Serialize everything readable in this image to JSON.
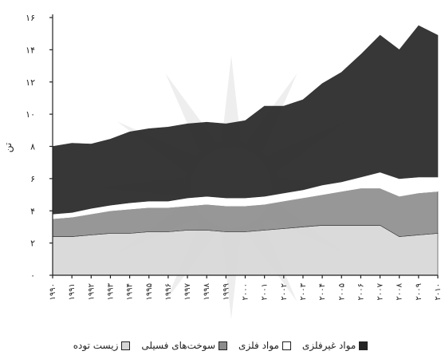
{
  "chart_data": {
    "type": "area",
    "stacked": true,
    "ylabel": "تن",
    "ylim": [
      0,
      16
    ],
    "y_ticks": [
      0,
      2,
      4,
      6,
      8,
      10,
      12,
      14,
      16
    ],
    "y_tick_labels": [
      "٠",
      "٢",
      "۴",
      "۶",
      "٨",
      "١٠",
      "١٢",
      "١۴",
      "١۶"
    ],
    "x": [
      1990,
      1991,
      1992,
      1993,
      1994,
      1995,
      1996,
      1997,
      1998,
      1999,
      2000,
      2001,
      2002,
      2003,
      2004,
      2005,
      2006,
      2007,
      2008,
      2009,
      2010
    ],
    "x_tick_labels": [
      "۱۹۹۰",
      "۱۹۹۱",
      "۱۹۹۲",
      "۱۹۹۳",
      "۱۹۹۴",
      "۱۹۹۵",
      "۱۹۹۶",
      "۱۹۹۷",
      "۱۹۹۸",
      "۱۹۹۹",
      "۲۰۰۰",
      "۲۰۰۱",
      "۲۰۰۲",
      "۲۰۰۳",
      "۲۰۰۴",
      "۲۰۰۵",
      "۲۰۰۶",
      "۲۰۰۷",
      "۲۰۰۸",
      "۲۰۰۹",
      "۲۰۱۰"
    ],
    "series": [
      {
        "name": "زیست توده",
        "color": "#d6d6d6",
        "values": [
          2.4,
          2.4,
          2.5,
          2.6,
          2.6,
          2.7,
          2.7,
          2.8,
          2.8,
          2.7,
          2.7,
          2.8,
          2.9,
          3.0,
          3.1,
          3.1,
          3.1,
          3.1,
          2.4,
          2.5,
          2.6
        ]
      },
      {
        "name": "سوخت‌های فسیلی",
        "color": "#8c8c8c",
        "values": [
          1.1,
          1.2,
          1.3,
          1.4,
          1.5,
          1.5,
          1.5,
          1.5,
          1.6,
          1.6,
          1.6,
          1.6,
          1.7,
          1.8,
          1.9,
          2.1,
          2.3,
          2.3,
          2.5,
          2.6,
          2.6
        ]
      },
      {
        "name": "مواد فلزی",
        "color": "#ffffff",
        "values": [
          0.3,
          0.3,
          0.35,
          0.35,
          0.4,
          0.4,
          0.4,
          0.5,
          0.5,
          0.5,
          0.5,
          0.5,
          0.5,
          0.5,
          0.6,
          0.6,
          0.7,
          1.0,
          1.1,
          1.0,
          0.9
        ]
      },
      {
        "name": "مواد غیرفلزی",
        "color": "#262626",
        "values": [
          4.2,
          4.3,
          4.0,
          4.1,
          4.4,
          4.5,
          4.6,
          4.6,
          4.6,
          4.6,
          4.8,
          5.6,
          5.4,
          5.6,
          6.3,
          6.8,
          7.6,
          8.5,
          8.0,
          9.4,
          8.8
        ]
      }
    ],
    "grid": false,
    "legend_position": "bottom"
  }
}
